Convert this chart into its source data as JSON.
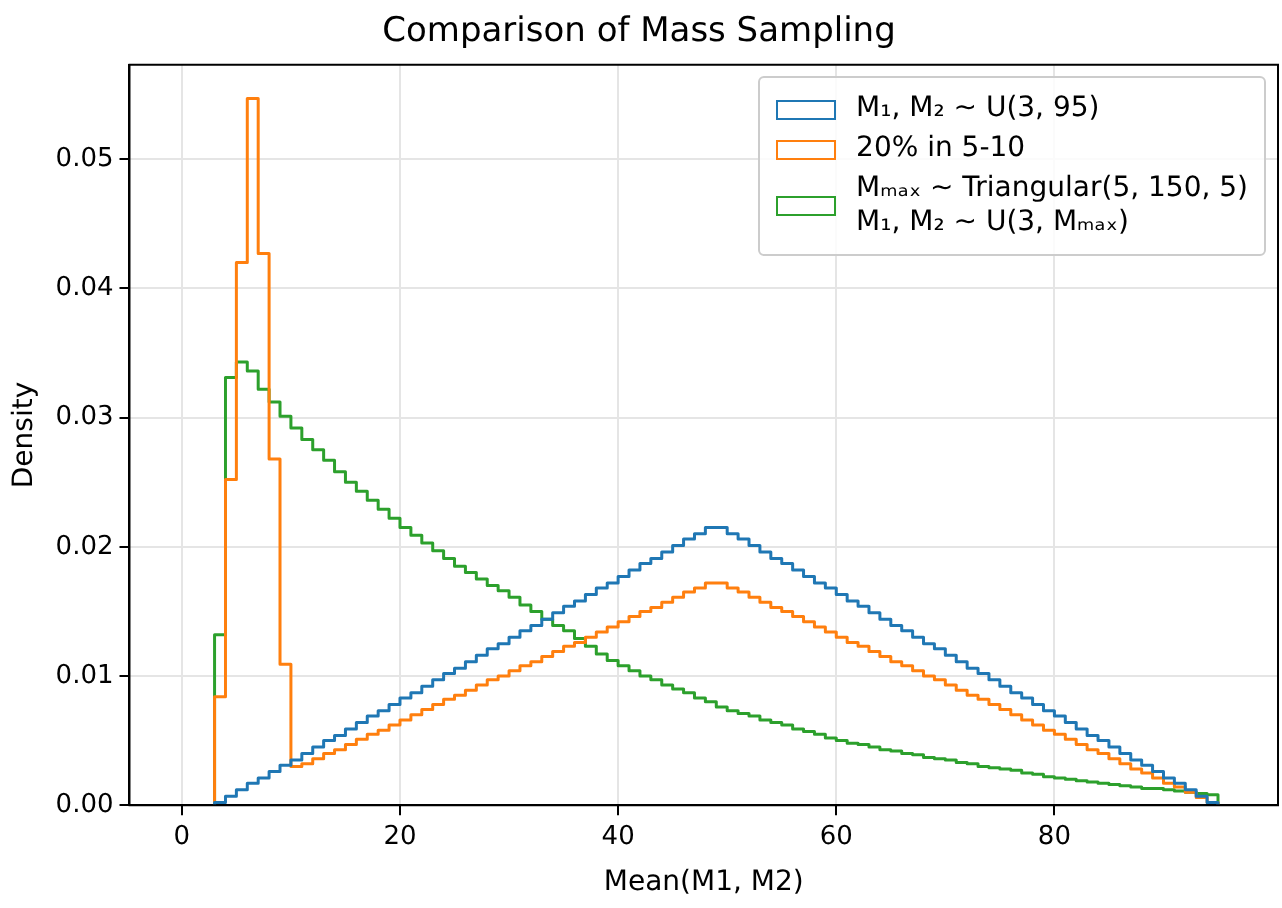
{
  "chart_data": {
    "type": "histogram",
    "title": "Comparison of Mass Sampling",
    "xlabel": "Mean(M1, M2)",
    "ylabel": "Density",
    "bins": [
      3,
      4,
      5,
      6,
      7,
      8,
      9,
      10,
      11,
      12,
      13,
      14,
      15,
      16,
      17,
      18,
      19,
      20,
      21,
      22,
      23,
      24,
      25,
      26,
      27,
      28,
      29,
      30,
      31,
      32,
      33,
      34,
      35,
      36,
      37,
      38,
      39,
      40,
      41,
      42,
      43,
      44,
      45,
      46,
      47,
      48,
      49,
      50,
      51,
      52,
      53,
      54,
      55,
      56,
      57,
      58,
      59,
      60,
      61,
      62,
      63,
      64,
      65,
      66,
      67,
      68,
      69,
      70,
      71,
      72,
      73,
      74,
      75,
      76,
      77,
      78,
      79,
      80,
      81,
      82,
      83,
      84,
      85,
      86,
      87,
      88,
      89,
      90,
      91,
      92,
      93,
      94,
      95
    ],
    "series": [
      {
        "name": "M₁, M₂ ~ U(3, 95)",
        "color": "#1f77b4",
        "values": [
          0.0002,
          0.0007,
          0.0012,
          0.0017,
          0.0021,
          0.0026,
          0.0031,
          0.0035,
          0.004,
          0.0045,
          0.005,
          0.0054,
          0.0059,
          0.0064,
          0.0069,
          0.0073,
          0.0078,
          0.0083,
          0.0087,
          0.0092,
          0.0097,
          0.0102,
          0.0106,
          0.0111,
          0.0116,
          0.0121,
          0.0125,
          0.013,
          0.0135,
          0.0139,
          0.0144,
          0.0149,
          0.0154,
          0.0158,
          0.0163,
          0.0168,
          0.0172,
          0.0177,
          0.0182,
          0.0187,
          0.0191,
          0.0196,
          0.0201,
          0.0206,
          0.021,
          0.0215,
          0.0215,
          0.021,
          0.0206,
          0.0201,
          0.0196,
          0.0191,
          0.0187,
          0.0182,
          0.0177,
          0.0172,
          0.0168,
          0.0163,
          0.0158,
          0.0154,
          0.0149,
          0.0144,
          0.0139,
          0.0135,
          0.013,
          0.0125,
          0.0121,
          0.0116,
          0.0111,
          0.0106,
          0.0102,
          0.0097,
          0.0092,
          0.0087,
          0.0083,
          0.0078,
          0.0073,
          0.0069,
          0.0064,
          0.0059,
          0.0054,
          0.005,
          0.0045,
          0.004,
          0.0035,
          0.0031,
          0.0026,
          0.0021,
          0.0017,
          0.0012,
          0.0007,
          0.0002
        ]
      },
      {
        "name": "20% in 5-10",
        "color": "#ff7f0e",
        "values": [
          0.0084,
          0.0252,
          0.042,
          0.0547,
          0.0427,
          0.0268,
          0.0109,
          0.003,
          0.0032,
          0.0036,
          0.004,
          0.0043,
          0.0047,
          0.0051,
          0.0055,
          0.0058,
          0.0062,
          0.0066,
          0.007,
          0.0074,
          0.0078,
          0.0082,
          0.0085,
          0.0089,
          0.0093,
          0.0097,
          0.01,
          0.0104,
          0.0108,
          0.0111,
          0.0115,
          0.0119,
          0.0123,
          0.0126,
          0.013,
          0.0134,
          0.0138,
          0.0142,
          0.0146,
          0.015,
          0.0153,
          0.0157,
          0.0161,
          0.0165,
          0.0168,
          0.0172,
          0.0172,
          0.0168,
          0.0165,
          0.0161,
          0.0157,
          0.0153,
          0.015,
          0.0146,
          0.0142,
          0.0138,
          0.0134,
          0.013,
          0.0126,
          0.0123,
          0.0119,
          0.0115,
          0.0111,
          0.0108,
          0.0104,
          0.01,
          0.0097,
          0.0093,
          0.0089,
          0.0085,
          0.0082,
          0.0078,
          0.0074,
          0.007,
          0.0066,
          0.0062,
          0.0058,
          0.0055,
          0.0051,
          0.0047,
          0.0043,
          0.004,
          0.0036,
          0.0032,
          0.0028,
          0.0025,
          0.0021,
          0.0017,
          0.0014,
          0.001,
          0.0006,
          0.0002
        ]
      },
      {
        "name": "Mₘₐₓ ~ Triangular(5, 150, 5)\nM₁, M₂ ~ U(3, Mₘₐₓ)",
        "color": "#2ca02c",
        "values": [
          0.0132,
          0.0331,
          0.0343,
          0.0336,
          0.0322,
          0.0312,
          0.0301,
          0.0292,
          0.0283,
          0.0275,
          0.0267,
          0.0258,
          0.025,
          0.0243,
          0.0236,
          0.0229,
          0.0222,
          0.0215,
          0.0209,
          0.0203,
          0.0197,
          0.0191,
          0.0185,
          0.018,
          0.0175,
          0.017,
          0.0166,
          0.0161,
          0.0155,
          0.015,
          0.0144,
          0.0139,
          0.0135,
          0.0129,
          0.0123,
          0.0117,
          0.0112,
          0.0108,
          0.0104,
          0.01,
          0.0097,
          0.0093,
          0.009,
          0.0087,
          0.0083,
          0.008,
          0.0076,
          0.0073,
          0.0071,
          0.0069,
          0.0066,
          0.0064,
          0.0062,
          0.0059,
          0.0057,
          0.0055,
          0.0052,
          0.005,
          0.0048,
          0.0047,
          0.0045,
          0.0043,
          0.0042,
          0.004,
          0.0039,
          0.0037,
          0.0036,
          0.0035,
          0.0033,
          0.0032,
          0.003,
          0.0029,
          0.0028,
          0.0027,
          0.0025,
          0.0024,
          0.0022,
          0.0021,
          0.002,
          0.0019,
          0.0018,
          0.0017,
          0.0016,
          0.0015,
          0.0014,
          0.0013,
          0.0013,
          0.0012,
          0.0011,
          0.001,
          0.0009,
          0.0008
        ]
      }
    ],
    "xlim": [
      -4.8,
      100.5
    ],
    "xticks": [
      0,
      20,
      40,
      60,
      80
    ],
    "ylim": [
      0,
      0.0573
    ],
    "yticks": [
      {
        "value": 0,
        "label": "0.00"
      },
      {
        "value": 0.01,
        "label": "0.01"
      },
      {
        "value": 0.02,
        "label": "0.02"
      },
      {
        "value": 0.03,
        "label": "0.03"
      },
      {
        "value": 0.04,
        "label": "0.04"
      },
      {
        "value": 0.05,
        "label": "0.05"
      }
    ],
    "grid": true,
    "legend": "top right"
  }
}
